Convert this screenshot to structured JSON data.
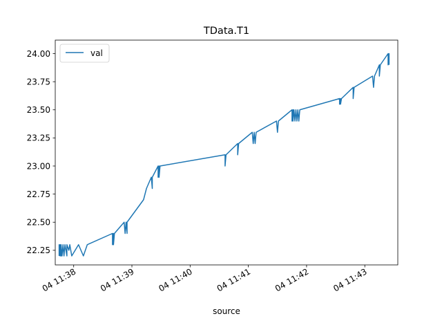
{
  "chart_data": {
    "type": "line",
    "title": "TData.T1",
    "xlabel": "source",
    "ylabel": "",
    "ylim": [
      22.12,
      24.12
    ],
    "xlim": [
      "04 11:37:41",
      "04 11:43:34"
    ],
    "legend": {
      "position": "top-left",
      "entries": [
        "val"
      ]
    },
    "grid": false,
    "series_color": "#1f77b4",
    "x_ticks": [
      {
        "label": "04 11:38",
        "time": "04 11:38:00"
      },
      {
        "label": "04 11:39",
        "time": "04 11:39:00"
      },
      {
        "label": "04 11:40",
        "time": "04 11:40:00"
      },
      {
        "label": "04 11:41",
        "time": "04 11:41:00"
      },
      {
        "label": "04 11:42",
        "time": "04 11:42:00"
      },
      {
        "label": "04 11:43",
        "time": "04 11:43:00"
      }
    ],
    "y_ticks": [
      {
        "label": "22.25",
        "value": 22.25
      },
      {
        "label": "22.50",
        "value": 22.5
      },
      {
        "label": "22.75",
        "value": 22.75
      },
      {
        "label": "23.00",
        "value": 23.0
      },
      {
        "label": "23.25",
        "value": 23.25
      },
      {
        "label": "23.50",
        "value": 23.5
      },
      {
        "label": "23.75",
        "value": 23.75
      },
      {
        "label": "24.00",
        "value": 24.0
      }
    ],
    "series": [
      {
        "name": "val",
        "points": [
          [
            "04 11:37:45",
            22.2
          ],
          [
            "04 11:37:45",
            22.3
          ],
          [
            "04 11:37:46",
            22.2
          ],
          [
            "04 11:37:46",
            22.3
          ],
          [
            "04 11:37:47",
            22.2
          ],
          [
            "04 11:37:47",
            22.3
          ],
          [
            "04 11:37:48",
            22.2
          ],
          [
            "04 11:37:49",
            22.3
          ],
          [
            "04 11:37:50",
            22.2
          ],
          [
            "04 11:37:51",
            22.3
          ],
          [
            "04 11:37:52",
            22.25
          ],
          [
            "04 11:37:53",
            22.2
          ],
          [
            "04 11:37:53",
            22.3
          ],
          [
            "04 11:37:55",
            22.25
          ],
          [
            "04 11:37:56",
            22.3
          ],
          [
            "04 11:37:58",
            22.2
          ],
          [
            "04 11:38:05",
            22.3
          ],
          [
            "04 11:38:10",
            22.2
          ],
          [
            "04 11:38:14",
            22.3
          ],
          [
            "04 11:38:40",
            22.4
          ],
          [
            "04 11:38:40",
            22.3
          ],
          [
            "04 11:38:41",
            22.4
          ],
          [
            "04 11:38:41",
            22.3
          ],
          [
            "04 11:38:42",
            22.4
          ],
          [
            "04 11:38:52",
            22.5
          ],
          [
            "04 11:38:53",
            22.4
          ],
          [
            "04 11:38:54",
            22.5
          ],
          [
            "04 11:38:55",
            22.4
          ],
          [
            "04 11:38:55",
            22.5
          ],
          [
            "04 11:39:12",
            22.7
          ],
          [
            "04 11:39:15",
            22.8
          ],
          [
            "04 11:39:20",
            22.9
          ],
          [
            "04 11:39:21",
            22.8
          ],
          [
            "04 11:39:21",
            22.9
          ],
          [
            "04 11:39:24",
            22.95
          ],
          [
            "04 11:39:27",
            23.0
          ],
          [
            "04 11:39:27",
            22.9
          ],
          [
            "04 11:39:28",
            23.0
          ],
          [
            "04 11:39:28",
            22.9
          ],
          [
            "04 11:39:29",
            23.0
          ],
          [
            "04 11:40:36",
            23.1
          ],
          [
            "04 11:40:36",
            23.0
          ],
          [
            "04 11:40:37",
            23.1
          ],
          [
            "04 11:40:49",
            23.2
          ],
          [
            "04 11:40:49",
            23.1
          ],
          [
            "04 11:40:50",
            23.2
          ],
          [
            "04 11:41:04",
            23.3
          ],
          [
            "04 11:41:05",
            23.2
          ],
          [
            "04 11:41:06",
            23.3
          ],
          [
            "04 11:41:07",
            23.2
          ],
          [
            "04 11:41:08",
            23.3
          ],
          [
            "04 11:41:29",
            23.4
          ],
          [
            "04 11:41:30",
            23.3
          ],
          [
            "04 11:41:31",
            23.4
          ],
          [
            "04 11:41:45",
            23.5
          ],
          [
            "04 11:41:45",
            23.4
          ],
          [
            "04 11:41:46",
            23.5
          ],
          [
            "04 11:41:46",
            23.4
          ],
          [
            "04 11:41:47",
            23.5
          ],
          [
            "04 11:41:48",
            23.4
          ],
          [
            "04 11:41:49",
            23.5
          ],
          [
            "04 11:41:50",
            23.4
          ],
          [
            "04 11:41:51",
            23.5
          ],
          [
            "04 11:41:52",
            23.4
          ],
          [
            "04 11:41:53",
            23.5
          ],
          [
            "04 11:42:34",
            23.6
          ],
          [
            "04 11:42:34",
            23.55
          ],
          [
            "04 11:42:35",
            23.6
          ],
          [
            "04 11:42:35",
            23.55
          ],
          [
            "04 11:42:36",
            23.6
          ],
          [
            "04 11:42:48",
            23.7
          ],
          [
            "04 11:42:48",
            23.6
          ],
          [
            "04 11:42:49",
            23.7
          ],
          [
            "04 11:43:08",
            23.8
          ],
          [
            "04 11:43:09",
            23.7
          ],
          [
            "04 11:43:10",
            23.8
          ],
          [
            "04 11:43:15",
            23.9
          ],
          [
            "04 11:43:15",
            23.8
          ],
          [
            "04 11:43:16",
            23.9
          ],
          [
            "04 11:43:24",
            24.0
          ],
          [
            "04 11:43:24",
            23.9
          ],
          [
            "04 11:43:25",
            24.0
          ],
          [
            "04 11:43:25",
            23.9
          ]
        ]
      }
    ]
  }
}
